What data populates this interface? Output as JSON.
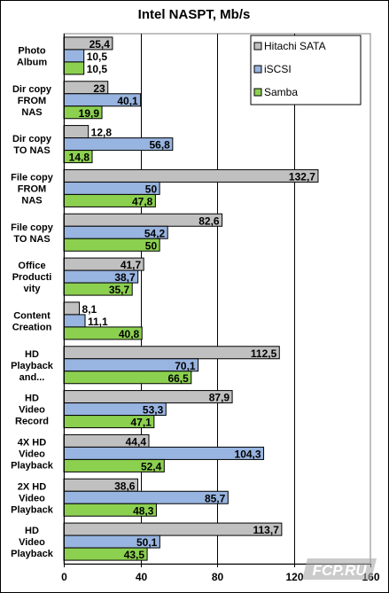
{
  "chart_data": {
    "type": "bar",
    "orientation": "horizontal",
    "title": "Intel NASPT, Mb/s",
    "categories": [
      "Photo Album",
      "Dir copy FROM NAS",
      "Dir copy TO NAS",
      "File copy FROM NAS",
      "File copy TO NAS",
      "Office Productivity",
      "Content Creation",
      "HD Playback and...",
      "HD Video Record",
      "4X HD Video Playback",
      "2X HD Video Playback",
      "HD Video Playback"
    ],
    "category_label_lines": [
      [
        "Photo",
        "Album"
      ],
      [
        "Dir copy",
        "FROM",
        "NAS"
      ],
      [
        "Dir copy",
        "TO NAS"
      ],
      [
        "File copy",
        "FROM",
        "NAS"
      ],
      [
        "File copy",
        "TO NAS"
      ],
      [
        "Office",
        "Producti",
        "vity"
      ],
      [
        "Content",
        "Creation"
      ],
      [
        "HD",
        "Playback",
        "and..."
      ],
      [
        "HD",
        "Video",
        "Record"
      ],
      [
        "4X HD",
        "Video",
        "Playback"
      ],
      [
        "2X HD",
        "Video",
        "Playback"
      ],
      [
        "HD",
        "Video",
        "Playback"
      ]
    ],
    "series": [
      {
        "name": "Hitachi SATA",
        "color": "#c0c0c0",
        "values": [
          25.4,
          23,
          12.8,
          132.7,
          82.6,
          41.7,
          8.1,
          112.5,
          87.9,
          44.4,
          38.6,
          113.7
        ],
        "labels": [
          "25,4",
          "23",
          "12,8",
          "132,7",
          "82,6",
          "41,7",
          "8,1",
          "112,5",
          "87,9",
          "44,4",
          "38,6",
          "113,7"
        ]
      },
      {
        "name": "iSCSI",
        "color": "#98b4e0",
        "values": [
          10.5,
          40.1,
          56.8,
          50,
          54.2,
          38.7,
          11.1,
          70.1,
          53.3,
          104.3,
          85.7,
          50.1
        ],
        "labels": [
          "10,5",
          "40,1",
          "56,8",
          "50",
          "54,2",
          "38,7",
          "11,1",
          "70,1",
          "53,3",
          "104,3",
          "85,7",
          "50,1"
        ]
      },
      {
        "name": "Samba",
        "color": "#8cd050",
        "values": [
          10.5,
          19.9,
          14.8,
          47.8,
          50,
          35.7,
          40.8,
          66.5,
          47.1,
          52.4,
          48.3,
          43.5
        ],
        "labels": [
          "10,5",
          "19,9",
          "14,8",
          "47,8",
          "50",
          "35,7",
          "40,8",
          "66,5",
          "47,1",
          "52,4",
          "48,3",
          "43,5"
        ]
      }
    ],
    "xlim": [
      0,
      160
    ],
    "xticks": [
      0,
      40,
      80,
      120,
      160
    ],
    "grid": true,
    "legend_position": "top-right"
  },
  "watermark": {
    "text": "FCP.RU"
  }
}
